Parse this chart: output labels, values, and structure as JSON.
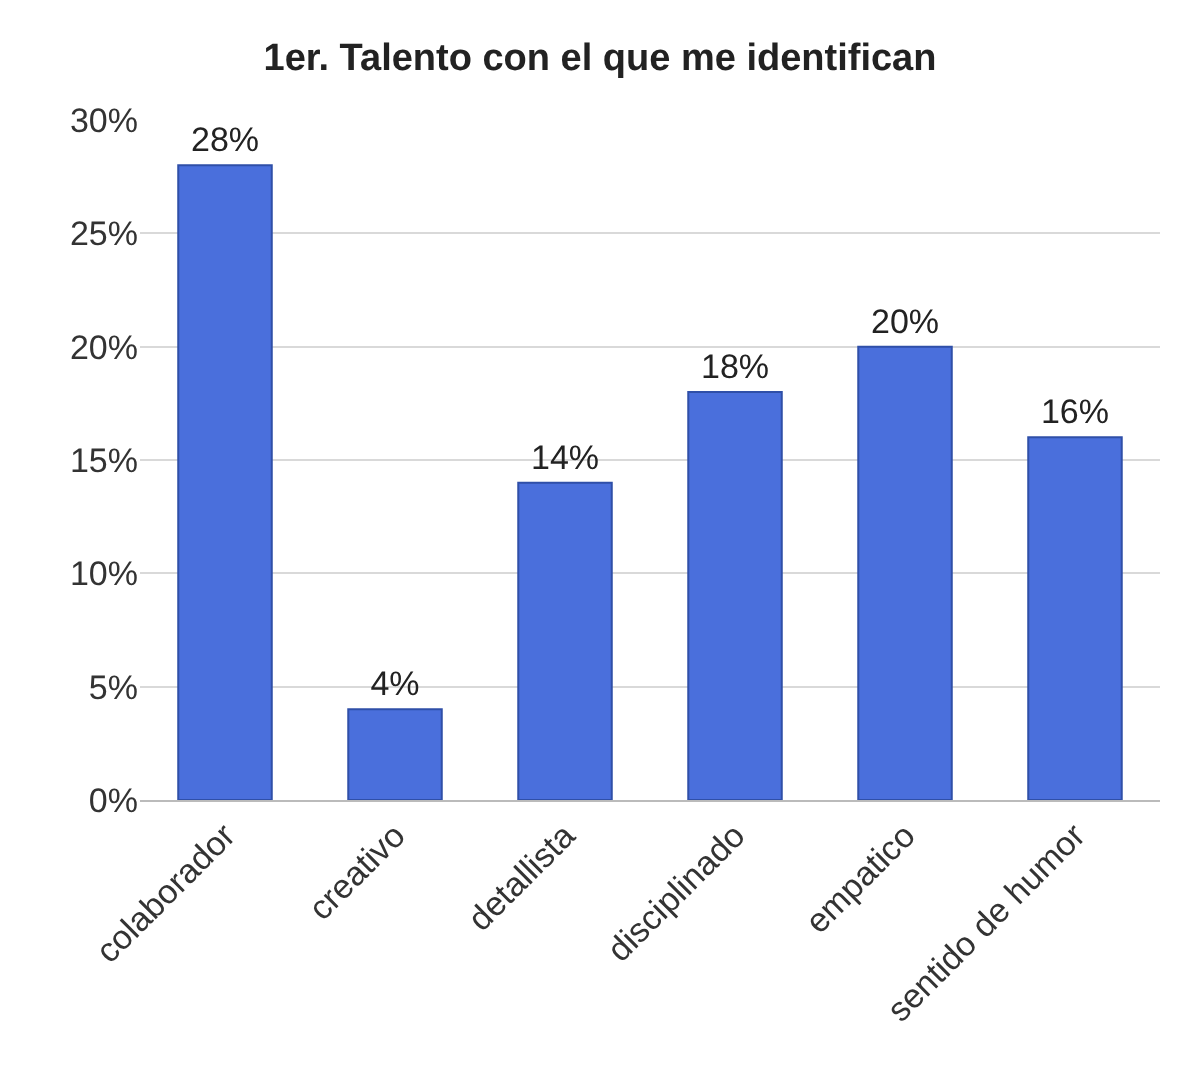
{
  "chart_data": {
    "type": "bar",
    "title": "1er. Talento con el que me identifican",
    "categories": [
      "colaborador",
      "creativo",
      "detallista",
      "disciplinado",
      "empatico",
      "sentido de humor"
    ],
    "values": [
      28,
      4,
      14,
      18,
      20,
      16
    ],
    "value_labels": [
      "28%",
      "4%",
      "14%",
      "18%",
      "20%",
      "16%"
    ],
    "color": "#4a6fdc",
    "ylim": [
      0,
      30
    ],
    "yticks": [
      {
        "value": 0,
        "label": "0%"
      },
      {
        "value": 5,
        "label": "5%"
      },
      {
        "value": 10,
        "label": "10%"
      },
      {
        "value": 15,
        "label": "15%"
      },
      {
        "value": 20,
        "label": "20%"
      },
      {
        "value": 25,
        "label": "25%"
      },
      {
        "value": 30,
        "label": "30%"
      }
    ],
    "grid": "y",
    "legend": false
  }
}
